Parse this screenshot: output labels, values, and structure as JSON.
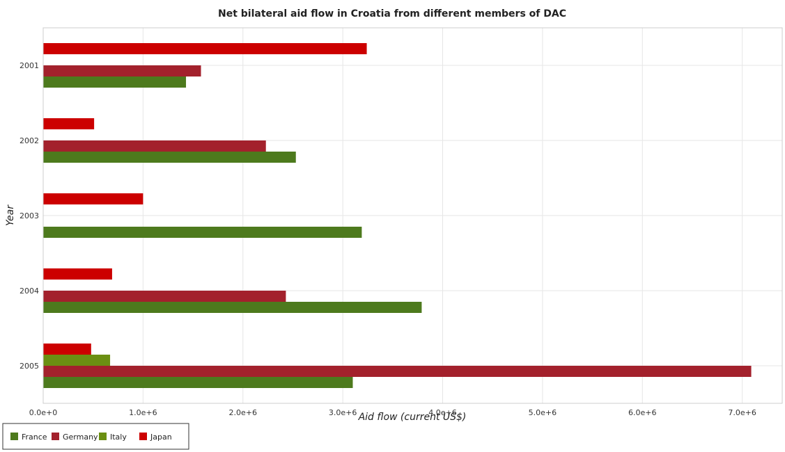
{
  "chart_data": {
    "type": "bar",
    "orientation": "horizontal",
    "title": "Net bilateral aid flow in Croatia from different members of DAC",
    "xlabel": "Aid flow (current US$)",
    "ylabel": "Year",
    "categories": [
      "2001",
      "2002",
      "2003",
      "2004",
      "2005"
    ],
    "xlim": [
      0,
      7400000
    ],
    "xticks": [
      0,
      1000000,
      2000000,
      3000000,
      4000000,
      5000000,
      6000000,
      7000000
    ],
    "xtick_labels": [
      "0.0e+0",
      "1.0e+6",
      "2.0e+6",
      "3.0e+6",
      "4.0e+6",
      "5.0e+6",
      "6.0e+6",
      "7.0e+6"
    ],
    "grid": true,
    "legend_position": "bottom-left",
    "series": [
      {
        "name": "France",
        "color": "#4d7a1d",
        "values": [
          1430000,
          2530000,
          3190000,
          3790000,
          3100000
        ]
      },
      {
        "name": "Germany",
        "color": "#a3212c",
        "values": [
          1580000,
          2230000,
          0,
          2430000,
          7090000
        ]
      },
      {
        "name": "Italy",
        "color": "#6b8f12",
        "values": [
          0,
          0,
          0,
          0,
          670000
        ]
      },
      {
        "name": "Japan",
        "color": "#cc0000",
        "values": [
          3240000,
          510000,
          1000000,
          690000,
          480000
        ]
      }
    ]
  }
}
